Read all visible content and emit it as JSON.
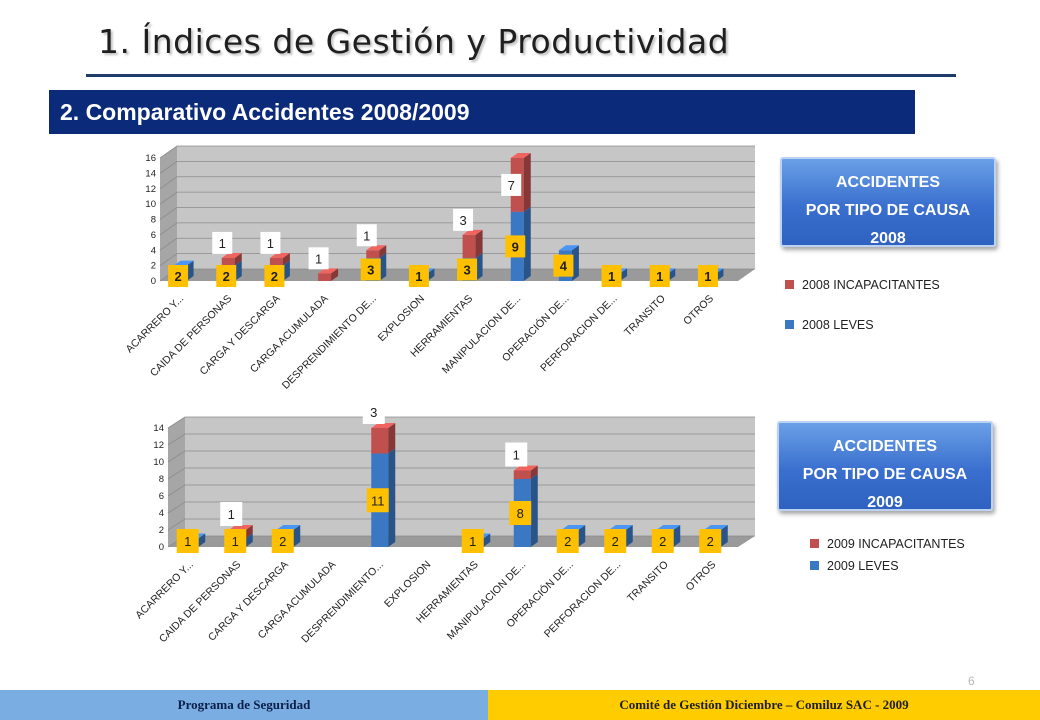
{
  "title": "1.  Índices de Gestión y Productividad",
  "subtitle": "2. Comparativo Accidentes 2008/2009",
  "badge_2008": {
    "line1": "ACCIDENTES",
    "line2": "POR TIPO DE CAUSA",
    "line3": "2008"
  },
  "badge_2009": {
    "line1": "ACCIDENTES",
    "line2": "POR TIPO DE CAUSA",
    "line3": "2009"
  },
  "legend_2008": {
    "incap": "2008 INCAPACITANTES",
    "leves": "2008 LEVES"
  },
  "legend_2009": {
    "incap": "2009 INCAPACITANTES",
    "leves": "2009 LEVES"
  },
  "footer": {
    "left": "Programa de Seguridad",
    "right": "Comité de Gestión Diciembre – Comiluz  SAC - 2009"
  },
  "page_number": "6",
  "colors": {
    "leves": "#3b78c4",
    "incapacitantes": "#c0504d",
    "label_box": "#ffc000",
    "wall": "#c6c6c6",
    "floor": "#9a9a9a"
  },
  "chart_data": [
    {
      "type": "bar",
      "stacked": true,
      "three_d": true,
      "categories": [
        "ACARRERO Y...",
        "CAIDA DE PERSONAS",
        "CARGA Y DESCARGA",
        "CARGA ACUMULADA",
        "DESPRENDIMIENTO DE...",
        "EXPLOSION",
        "HERRAMIENTAS",
        "MANIPULACION DE...",
        "OPERACIÓN DE...",
        "PERFORACION DE...",
        "TRANSITO",
        "OTROS"
      ],
      "series": [
        {
          "name": "2008 LEVES",
          "values": [
            2,
            2,
            2,
            0,
            3,
            1,
            3,
            9,
            4,
            1,
            1,
            1
          ]
        },
        {
          "name": "2008 INCAPACITANTES",
          "values": [
            0,
            1,
            1,
            1,
            1,
            0,
            3,
            7,
            0,
            0,
            0,
            0
          ]
        }
      ],
      "leves_labels": [
        "2",
        "2",
        "2",
        "",
        "3",
        "1",
        "3",
        "9",
        "4",
        "1",
        "1",
        "1"
      ],
      "incap_labels": [
        "",
        "1",
        "1",
        "1",
        "1",
        "",
        "3",
        "7",
        "",
        "",
        "",
        ""
      ],
      "ylim": [
        0,
        16
      ],
      "yticks": [
        "0",
        "2",
        "4",
        "6",
        "8",
        "10",
        "12",
        "14",
        "16"
      ],
      "legend_position": "right"
    },
    {
      "type": "bar",
      "stacked": true,
      "three_d": true,
      "categories": [
        "ACARRERO Y...",
        "CAIDA DE PERSONAS",
        "CARGA Y DESCARGA",
        "CARGA ACUMULADA",
        "DESPRENDIMIENTO...",
        "EXPLOSION",
        "HERRAMIENTAS",
        "MANIPULACION DE...",
        "OPERACIÓN DE...",
        "PERFORACION DE...",
        "TRANSITO",
        "OTROS"
      ],
      "series": [
        {
          "name": "2009 LEVES",
          "values": [
            1,
            1,
            2,
            0,
            11,
            0,
            1,
            8,
            2,
            2,
            2,
            2
          ]
        },
        {
          "name": "2009 INCAPACITANTES",
          "values": [
            0,
            1,
            0,
            0,
            3,
            0,
            0,
            1,
            0,
            0,
            0,
            0
          ]
        }
      ],
      "leves_labels": [
        "1",
        "1",
        "2",
        "",
        "11",
        "",
        "1",
        "8",
        "2",
        "2",
        "2",
        "2"
      ],
      "incap_labels": [
        "",
        "1",
        "",
        "",
        "3",
        "",
        "",
        "1",
        "",
        "",
        "",
        ""
      ],
      "ylim": [
        0,
        14
      ],
      "yticks": [
        "0",
        "2",
        "4",
        "6",
        "8",
        "10",
        "12",
        "14"
      ],
      "legend_position": "right"
    }
  ]
}
